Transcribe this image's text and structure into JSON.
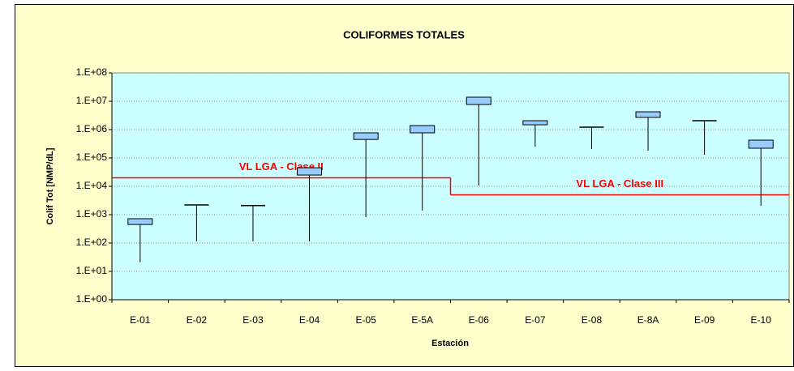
{
  "chart_data": {
    "type": "box",
    "title": "COLIFORMES TOTALES",
    "x_label": "Estación",
    "y_label": "Colif Tot [NMP/dL]",
    "categories": [
      "E-01",
      "E-02",
      "E-03",
      "E-04",
      "E-05",
      "E-5A",
      "E-06",
      "E-07",
      "E-08",
      "E-8A",
      "E-09",
      "E-10"
    ],
    "whisker_min": [
      21,
      114,
      114,
      114,
      820,
      1400,
      10700,
      250000,
      206000,
      181000,
      130000,
      2060
    ],
    "box_low": [
      450,
      2200,
      2100,
      25000,
      450000,
      770000,
      7700000,
      1480000,
      1220000,
      2700000,
      2060000,
      220000
    ],
    "box_high": [
      720,
      2200,
      2100,
      45000,
      770000,
      1390000,
      13900000,
      2060000,
      1220000,
      4250000,
      2060000,
      425000
    ],
    "color": "#99ccff",
    "log_scale": true,
    "grid": true,
    "ylim": [
      1,
      100000000
    ],
    "yticks": [
      {
        "value": 1,
        "label": "1.E+00"
      },
      {
        "value": 10,
        "label": "1.E+01"
      },
      {
        "value": 100,
        "label": "1.E+02"
      },
      {
        "value": 1000,
        "label": "1.E+03"
      },
      {
        "value": 10000,
        "label": "1.E+04"
      },
      {
        "value": 100000,
        "label": "1.E+05"
      },
      {
        "value": 1000000,
        "label": "1.E+06"
      },
      {
        "value": 10000000,
        "label": "1.E+07"
      },
      {
        "value": 100000000,
        "label": "1.E+08"
      }
    ],
    "limits": [
      {
        "label": "VL LGA - Clase II",
        "value": 20000,
        "color": "#ff0000"
      },
      {
        "label": "VL LGA - Clase III",
        "value": 5000,
        "color": "#ff0000"
      }
    ]
  }
}
